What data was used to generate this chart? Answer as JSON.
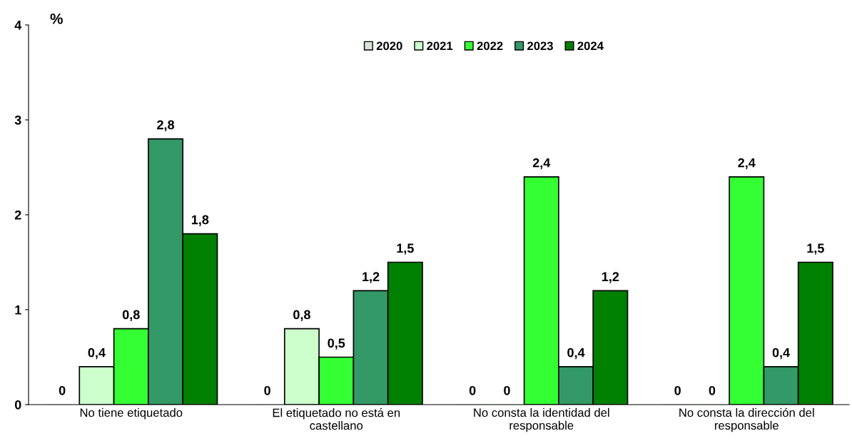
{
  "chart_data": {
    "type": "bar",
    "ylabel": "%",
    "categories": [
      "No tiene etiquetado",
      "El etiquetado no está en\ncastellano",
      "No consta la identidad del\nresponsable",
      "No consta la dirección del\nresponsable"
    ],
    "series": [
      {
        "name": "2020",
        "color": "#d8e4d8",
        "values": [
          0,
          0,
          0,
          0
        ],
        "value_labels": [
          "0",
          "0",
          "0",
          "0"
        ]
      },
      {
        "name": "2021",
        "color": "#ccffcc",
        "values": [
          0.4,
          0.8,
          0,
          0
        ],
        "value_labels": [
          "0,4",
          "0,8",
          "0",
          "0"
        ]
      },
      {
        "name": "2022",
        "color": "#33ff33",
        "values": [
          0.8,
          0.5,
          2.4,
          2.4
        ],
        "value_labels": [
          "0,8",
          "0,5",
          "2,4",
          "2,4"
        ]
      },
      {
        "name": "2023",
        "color": "#339966",
        "values": [
          2.8,
          1.2,
          0.4,
          0.4
        ],
        "value_labels": [
          "2,8",
          "1,2",
          "0,4",
          "0,4"
        ]
      },
      {
        "name": "2024",
        "color": "#008000",
        "values": [
          1.8,
          1.5,
          1.2,
          1.5
        ],
        "value_labels": [
          "1,8",
          "1,5",
          "1,2",
          "1,5"
        ]
      }
    ],
    "ylim": [
      0,
      4
    ],
    "yticks": [
      0,
      1,
      2,
      3,
      4
    ],
    "grid": false,
    "legend": "top"
  }
}
